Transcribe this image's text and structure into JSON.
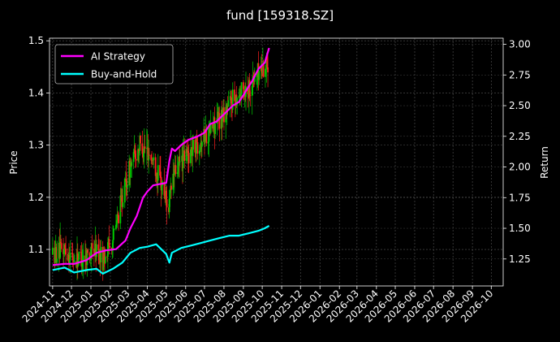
{
  "chart_data": {
    "type": "line",
    "title": "fund [159318.SZ]",
    "ylabel_left": "Price",
    "ylabel_right": "Return",
    "xlabel": "",
    "grid": true,
    "legend_position": "top-left",
    "background": "#000000",
    "x_ticks": [
      "2024-11",
      "2024-12",
      "2025-01",
      "2025-02",
      "2025-03",
      "2025-04",
      "2025-05",
      "2025-06",
      "2025-07",
      "2025-08",
      "2025-09",
      "2025-10",
      "2025-11",
      "2025-12",
      "2026-01",
      "2026-02",
      "2026-03",
      "2026-04",
      "2026-05",
      "2026-06",
      "2026-07",
      "2026-08",
      "2026-09",
      "2026-10"
    ],
    "xlim": [
      "2024-10-27",
      "2026-10-20"
    ],
    "y_left": {
      "ticks": [
        "1.1",
        "1.2",
        "1.3",
        "1.4",
        "1.5"
      ],
      "tick_values": [
        1.1,
        1.2,
        1.3,
        1.4,
        1.5
      ],
      "ylim": [
        1.03,
        1.505
      ]
    },
    "y_right": {
      "ticks": [
        "1.25",
        "1.50",
        "1.75",
        "2.00",
        "2.25",
        "2.50",
        "2.75",
        "3.00"
      ],
      "tick_values": [
        1.25,
        1.5,
        1.75,
        2.0,
        2.25,
        2.5,
        2.75,
        3.0
      ],
      "ylim": [
        1.03,
        3.05
      ]
    },
    "series": [
      {
        "name": "AI Strategy",
        "axis": "right",
        "color": "#ff00ff",
        "points": [
          [
            "2024-11-01",
            1.2
          ],
          [
            "2024-11-20",
            1.21
          ],
          [
            "2024-12-05",
            1.21
          ],
          [
            "2024-12-25",
            1.24
          ],
          [
            "2025-01-10",
            1.3
          ],
          [
            "2025-01-25",
            1.32
          ],
          [
            "2025-02-10",
            1.33
          ],
          [
            "2025-02-25",
            1.4
          ],
          [
            "2025-03-05",
            1.5
          ],
          [
            "2025-03-15",
            1.6
          ],
          [
            "2025-03-25",
            1.75
          ],
          [
            "2025-04-01",
            1.8
          ],
          [
            "2025-04-10",
            1.85
          ],
          [
            "2025-04-20",
            1.86
          ],
          [
            "2025-05-01",
            1.87
          ],
          [
            "2025-05-06",
            2.05
          ],
          [
            "2025-05-10",
            2.15
          ],
          [
            "2025-05-15",
            2.13
          ],
          [
            "2025-05-25",
            2.18
          ],
          [
            "2025-06-05",
            2.22
          ],
          [
            "2025-06-20",
            2.25
          ],
          [
            "2025-07-01",
            2.28
          ],
          [
            "2025-07-10",
            2.35
          ],
          [
            "2025-07-20",
            2.37
          ],
          [
            "2025-08-01",
            2.43
          ],
          [
            "2025-08-15",
            2.5
          ],
          [
            "2025-08-25",
            2.53
          ],
          [
            "2025-09-05",
            2.62
          ],
          [
            "2025-09-15",
            2.7
          ],
          [
            "2025-09-25",
            2.8
          ],
          [
            "2025-10-05",
            2.85
          ],
          [
            "2025-10-12",
            2.97
          ]
        ]
      },
      {
        "name": "Buy-and-Hold",
        "axis": "right",
        "color": "#00ffff",
        "points": [
          [
            "2024-11-01",
            1.16
          ],
          [
            "2024-11-20",
            1.18
          ],
          [
            "2024-12-05",
            1.14
          ],
          [
            "2024-12-25",
            1.16
          ],
          [
            "2025-01-10",
            1.17
          ],
          [
            "2025-01-20",
            1.13
          ],
          [
            "2025-02-05",
            1.17
          ],
          [
            "2025-02-20",
            1.22
          ],
          [
            "2025-03-05",
            1.3
          ],
          [
            "2025-03-20",
            1.34
          ],
          [
            "2025-04-01",
            1.35
          ],
          [
            "2025-04-15",
            1.37
          ],
          [
            "2025-05-01",
            1.29
          ],
          [
            "2025-05-06",
            1.22
          ],
          [
            "2025-05-10",
            1.3
          ],
          [
            "2025-05-25",
            1.34
          ],
          [
            "2025-06-10",
            1.36
          ],
          [
            "2025-06-25",
            1.38
          ],
          [
            "2025-07-10",
            1.4
          ],
          [
            "2025-07-25",
            1.42
          ],
          [
            "2025-08-10",
            1.44
          ],
          [
            "2025-08-25",
            1.44
          ],
          [
            "2025-09-10",
            1.46
          ],
          [
            "2025-09-25",
            1.48
          ],
          [
            "2025-10-05",
            1.5
          ],
          [
            "2025-10-12",
            1.52
          ]
        ]
      }
    ],
    "candles": {
      "axis": "left",
      "up_color": "#00cc00",
      "down_color": "#ff2020",
      "anchor_path": [
        [
          "2024-11-01",
          1.09
        ],
        [
          "2024-11-20",
          1.1
        ],
        [
          "2024-12-05",
          1.08
        ],
        [
          "2024-12-25",
          1.09
        ],
        [
          "2025-01-10",
          1.1
        ],
        [
          "2025-01-20",
          1.08
        ],
        [
          "2025-02-05",
          1.12
        ],
        [
          "2025-02-20",
          1.2
        ],
        [
          "2025-03-05",
          1.26
        ],
        [
          "2025-03-20",
          1.3
        ],
        [
          "2025-04-01",
          1.29
        ],
        [
          "2025-04-10",
          1.27
        ],
        [
          "2025-04-25",
          1.22
        ],
        [
          "2025-05-05",
          1.18
        ],
        [
          "2025-05-12",
          1.24
        ],
        [
          "2025-05-25",
          1.27
        ],
        [
          "2025-06-10",
          1.29
        ],
        [
          "2025-06-25",
          1.31
        ],
        [
          "2025-07-10",
          1.33
        ],
        [
          "2025-07-25",
          1.35
        ],
        [
          "2025-08-10",
          1.38
        ],
        [
          "2025-08-25",
          1.4
        ],
        [
          "2025-09-10",
          1.41
        ],
        [
          "2025-09-25",
          1.44
        ],
        [
          "2025-10-12",
          1.46
        ]
      ]
    }
  }
}
